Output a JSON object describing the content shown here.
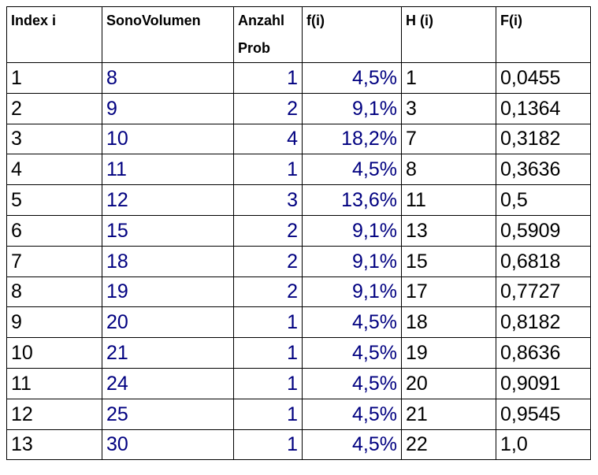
{
  "headers": {
    "index": "Index i",
    "sono": "SonoVolumen",
    "anzahl_1": "Anzahl",
    "anzahl_2": "Prob",
    "f": "f(i)",
    "H": "H (i)",
    "F": "F(i)"
  },
  "colors": {
    "value_blue": "#000080",
    "text": "#000000",
    "border": "#000000"
  },
  "rows": [
    {
      "i": "1",
      "sono": "8",
      "anzahl": "1",
      "f": "4,5%",
      "H": "1",
      "F": "0,0455"
    },
    {
      "i": "2",
      "sono": "9",
      "anzahl": "2",
      "f": "9,1%",
      "H": "3",
      "F": "0,1364"
    },
    {
      "i": "3",
      "sono": "10",
      "anzahl": "4",
      "f": "18,2%",
      "H": "7",
      "F": "0,3182"
    },
    {
      "i": "4",
      "sono": "11",
      "anzahl": "1",
      "f": "4,5%",
      "H": "8",
      "F": "0,3636"
    },
    {
      "i": "5",
      "sono": "12",
      "anzahl": "3",
      "f": "13,6%",
      "H": "11",
      "F": "0,5"
    },
    {
      "i": "6",
      "sono": "15",
      "anzahl": "2",
      "f": "9,1%",
      "H": "13",
      "F": "0,5909"
    },
    {
      "i": "7",
      "sono": "18",
      "anzahl": "2",
      "f": "9,1%",
      "H": "15",
      "F": "0,6818"
    },
    {
      "i": "8",
      "sono": "19",
      "anzahl": "2",
      "f": "9,1%",
      "H": "17",
      "F": "0,7727"
    },
    {
      "i": "9",
      "sono": "20",
      "anzahl": "1",
      "f": "4,5%",
      "H": "18",
      "F": "0,8182"
    },
    {
      "i": "10",
      "sono": "21",
      "anzahl": "1",
      "f": "4,5%",
      "H": "19",
      "F": "0,8636"
    },
    {
      "i": "11",
      "sono": "24",
      "anzahl": "1",
      "f": "4,5%",
      "H": "20",
      "F": "0,9091"
    },
    {
      "i": "12",
      "sono": "25",
      "anzahl": "1",
      "f": "4,5%",
      "H": "21",
      "F": "0,9545"
    },
    {
      "i": "13",
      "sono": "30",
      "anzahl": "1",
      "f": "4,5%",
      "H": "22",
      "F": "1,0"
    }
  ]
}
